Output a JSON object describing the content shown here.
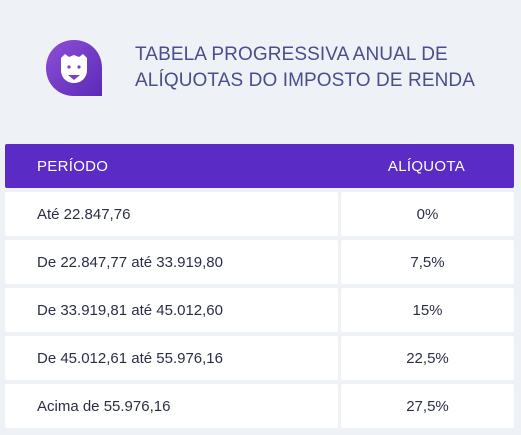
{
  "header": {
    "logo_icon": "lion-face-icon",
    "title_line1": "TABELA PROGRESSIVA ANUAL DE",
    "title_line2": "ALÍQUOTAS DO IMPOSTO DE RENDA"
  },
  "table": {
    "columns": [
      "PERÍODO",
      "ALÍQUOTA"
    ],
    "rows": [
      {
        "period": "Até 22.847,76",
        "rate": "0%"
      },
      {
        "period": "De 22.847,77 até 33.919,80",
        "rate": "7,5%"
      },
      {
        "period": "De 33.919,81 até 45.012,60",
        "rate": "15%"
      },
      {
        "period": "De 45.012,61 até 55.976,16",
        "rate": "22,5%"
      },
      {
        "period": "Acima de 55.976,16",
        "rate": "27,5%"
      }
    ]
  },
  "colors": {
    "accent": "#5b2bc6",
    "title": "#4a4e8a",
    "background": "#eef1f6"
  }
}
